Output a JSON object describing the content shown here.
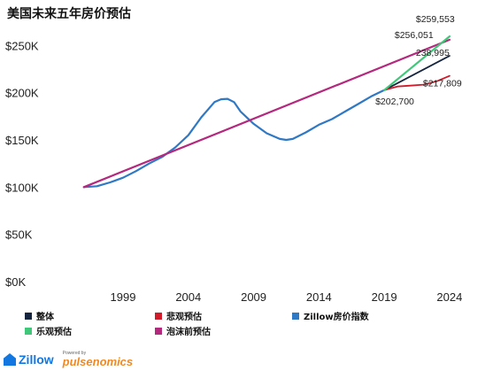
{
  "title": "美国未来五年房价预估",
  "chart_data": {
    "type": "line",
    "ylim": [
      0,
      270000
    ],
    "xlim": [
      1995.0,
      2025.5
    ],
    "y_ticks": [
      {
        "value": 0,
        "label": "$0K"
      },
      {
        "value": 50000,
        "label": "$50K"
      },
      {
        "value": 100000,
        "label": "$100K"
      },
      {
        "value": 150000,
        "label": "$150K"
      },
      {
        "value": 200000,
        "label": "$200K"
      },
      {
        "value": 250000,
        "label": "$250K"
      }
    ],
    "x_ticks": [
      {
        "value": 1999,
        "label": "1999"
      },
      {
        "value": 2004,
        "label": "2004"
      },
      {
        "value": 2009,
        "label": "2009"
      },
      {
        "value": 2014,
        "label": "2014"
      },
      {
        "value": 2019,
        "label": "2019"
      },
      {
        "value": 2024,
        "label": "2024"
      }
    ],
    "series": [
      {
        "name": "Zillow房价指数",
        "color": "#2f78c4",
        "width": 2.2,
        "x": [
          1996.0,
          1997.0,
          1998.0,
          1999.0,
          2000.0,
          2001.0,
          2002.0,
          2003.0,
          2004.0,
          2005.0,
          2006.0,
          2006.5,
          2007.0,
          2007.5,
          2008.0,
          2009.0,
          2010.0,
          2011.0,
          2011.5,
          2012.0,
          2013.0,
          2014.0,
          2015.0,
          2016.0,
          2017.0,
          2018.0,
          2019.0
        ],
        "y": [
          100000,
          101000,
          105000,
          110000,
          117000,
          125000,
          132000,
          142000,
          155000,
          174000,
          190000,
          193000,
          193500,
          190000,
          180000,
          167000,
          157000,
          151000,
          150000,
          151000,
          158000,
          166000,
          172000,
          180000,
          188000,
          196000,
          202700
        ]
      },
      {
        "name": "泡沫前预估",
        "color": "#b4287e",
        "width": 2.2,
        "x": [
          1996.0,
          2024.0
        ],
        "y": [
          100000,
          256051
        ]
      },
      {
        "name": "整体",
        "color": "#15253f",
        "width": 1.8,
        "x": [
          2019.0,
          2024.0
        ],
        "y": [
          202700,
          238995
        ]
      },
      {
        "name": "悲观预估",
        "color": "#d11a2a",
        "width": 1.8,
        "x": [
          2019.0,
          2020.0,
          2021.0,
          2022.0,
          2023.0,
          2024.0
        ],
        "y": [
          202700,
          206500,
          207500,
          208500,
          212000,
          217809
        ]
      },
      {
        "name": "乐观预估",
        "color": "#41c77a",
        "width": 2.2,
        "x": [
          2019.0,
          2024.0
        ],
        "y": [
          202700,
          259553
        ]
      }
    ],
    "annotations": [
      {
        "text": "$259,553",
        "x": 2024.0,
        "y": 259553
      },
      {
        "text": "$256,051",
        "x": 2024.0,
        "y": 256051
      },
      {
        "text": "238,995",
        "x": 2024.0,
        "y": 238995
      },
      {
        "text": "$217,809",
        "x": 2024.0,
        "y": 217809
      },
      {
        "text": "$202,700",
        "x": 2019.0,
        "y": 202700
      }
    ],
    "legend": [
      {
        "label": "整体",
        "color": "#15253f"
      },
      {
        "label": "悲观预估",
        "color": "#d11a2a"
      },
      {
        "label": "Zillow房价指数",
        "color": "#2f78c4"
      },
      {
        "label": "乐观预估",
        "color": "#41c77a"
      },
      {
        "label": "泡沫前预估",
        "color": "#b4287e"
      }
    ]
  },
  "footer": {
    "zillow": "Zillow",
    "powered_by": "Powered by",
    "pulsenomics": "pulsenomics"
  }
}
